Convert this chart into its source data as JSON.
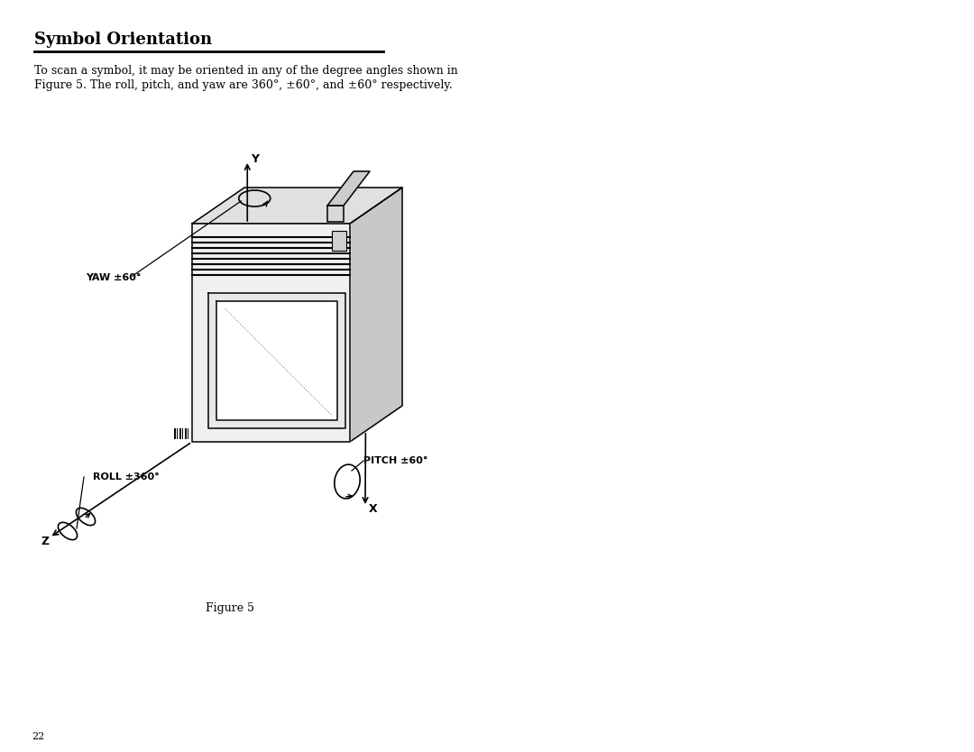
{
  "title": "Symbol Orientation",
  "body_text_line1": "To scan a symbol, it may be oriented in any of the degree angles shown in",
  "body_text_line2": "Figure 5. The roll, pitch, and yaw are 360Â°, Â±60Â°, and Â±60Â°respectively.",
  "figure_caption": "Figure 5",
  "page_number": "22",
  "bg_color": "#ffffff",
  "text_color": "#000000",
  "line_color": "#000000",
  "label_yaw": "YAW ±60°",
  "label_roll": "ROLL ±360°",
  "label_pitch": "PITCH ±60°",
  "label_x": "X",
  "label_y": "Y",
  "label_z": "Z"
}
